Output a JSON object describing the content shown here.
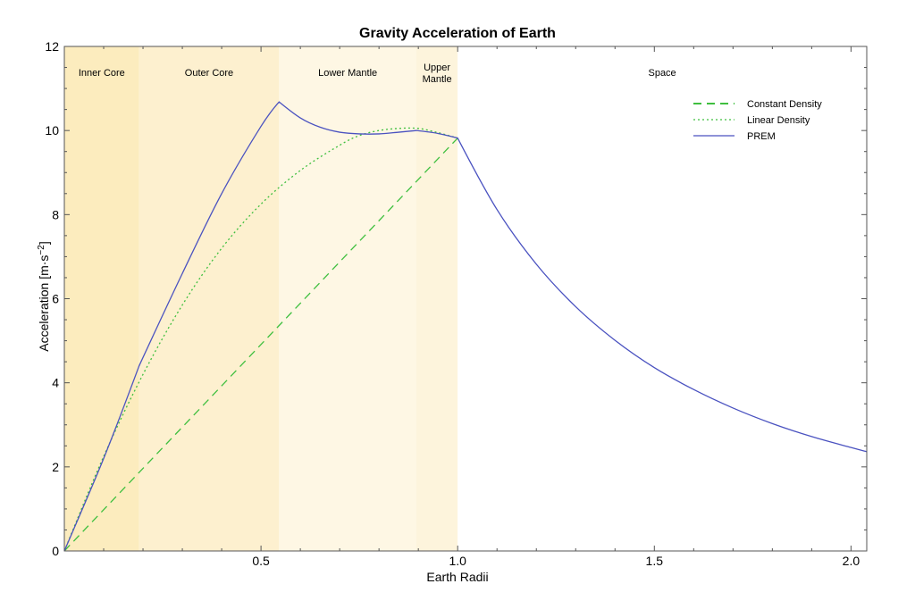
{
  "chart_data": {
    "type": "line",
    "title": "Gravity Acceleration of Earth",
    "xlabel": "Earth Radii",
    "ylabel": "Acceleration [m·s⁻²]",
    "ylabel_base": "Acceleration [m·s",
    "ylabel_exp": "−2",
    "ylabel_close": "]",
    "xlim": [
      0,
      2.04
    ],
    "ylim": [
      0,
      12
    ],
    "x_ticks": [
      0.5,
      1.0,
      1.5,
      2.0
    ],
    "x_tick_labels": [
      "0.5",
      "1.0",
      "1.5",
      "2.0"
    ],
    "y_ticks": [
      0,
      2,
      4,
      6,
      8,
      10,
      12
    ],
    "y_tick_labels": [
      "0",
      "2",
      "4",
      "6",
      "8",
      "10",
      "12"
    ],
    "grid": false,
    "legend_position": "top-right",
    "regions": [
      {
        "name": "Inner Core",
        "x_start": 0.0,
        "x_end": 0.19,
        "color": "#fcecbe"
      },
      {
        "name": "Outer Core",
        "x_start": 0.19,
        "x_end": 0.546,
        "color": "#fdf0cf"
      },
      {
        "name": "Lower Mantle",
        "x_start": 0.546,
        "x_end": 0.895,
        "color": "#fef7e4"
      },
      {
        "name": "Upper\nMantle",
        "x_start": 0.895,
        "x_end": 1.0,
        "color": "#fdf4dc"
      },
      {
        "name": "Space",
        "x_start": 1.0,
        "x_end": 2.04,
        "color": "#ffffff"
      }
    ],
    "series": [
      {
        "name": "Constant Density",
        "style": "dashed",
        "color": "#3fbf3f",
        "x": [
          0,
          1.0
        ],
        "y": [
          0,
          9.82
        ]
      },
      {
        "name": "Linear Density",
        "style": "dotted",
        "color": "#3fbf3f",
        "x": [
          0,
          0.1,
          0.2,
          0.3,
          0.4,
          0.5,
          0.6,
          0.7,
          0.75,
          0.8,
          0.85,
          0.9,
          0.95,
          1.0
        ],
        "y": [
          0,
          2.25,
          4.2,
          5.85,
          7.2,
          8.25,
          9.05,
          9.65,
          9.88,
          10.0,
          10.05,
          10.05,
          9.95,
          9.82
        ]
      },
      {
        "name": "PREM",
        "style": "solid",
        "color": "#4a52c0",
        "x": [
          0,
          0.1,
          0.19,
          0.3,
          0.4,
          0.5,
          0.546,
          0.6,
          0.65,
          0.7,
          0.75,
          0.8,
          0.85,
          0.895,
          0.95,
          1.0,
          1.1,
          1.2,
          1.3,
          1.4,
          1.5,
          1.6,
          1.7,
          1.8,
          1.9,
          2.0,
          2.04
        ],
        "y": [
          0,
          2.2,
          4.4,
          6.6,
          8.5,
          10.1,
          10.68,
          10.3,
          10.08,
          9.96,
          9.92,
          9.92,
          9.96,
          10.0,
          9.93,
          9.82,
          8.12,
          6.82,
          5.81,
          5.01,
          4.36,
          3.84,
          3.4,
          3.03,
          2.72,
          2.46,
          2.36
        ]
      }
    ]
  }
}
